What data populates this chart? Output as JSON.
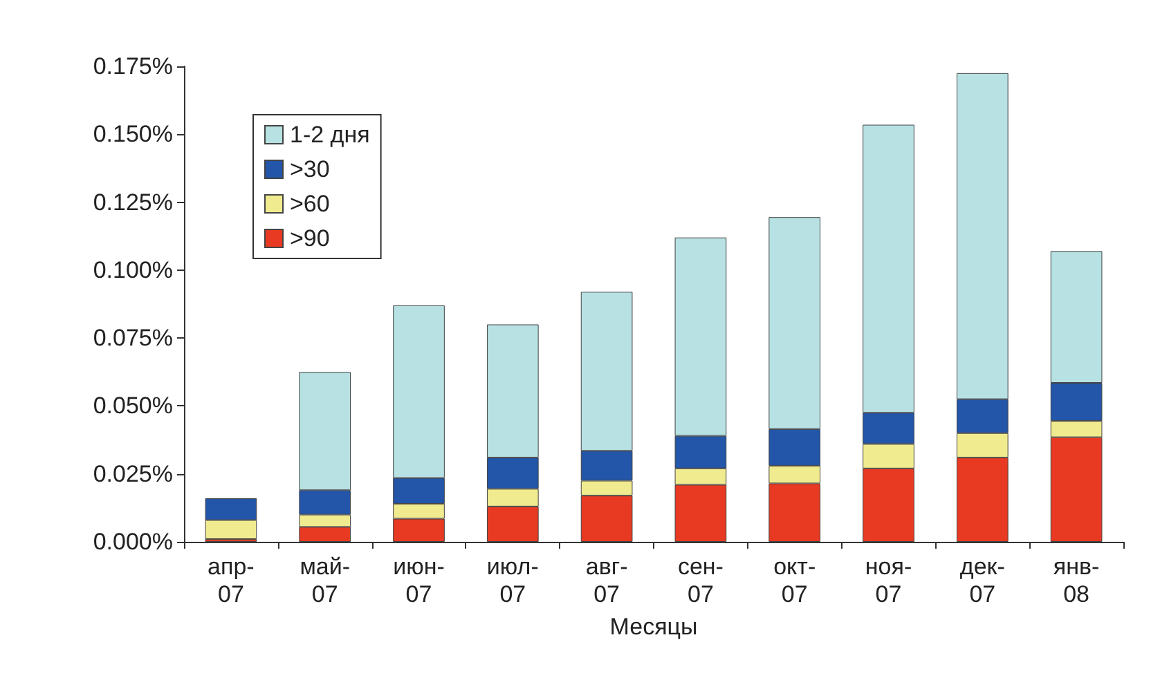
{
  "chart_data": {
    "type": "bar",
    "stacked": true,
    "xlabel": "Месяцы",
    "categories": [
      "апр-07",
      "май-07",
      "июн-07",
      "июл-07",
      "авг-07",
      "сен-07",
      "окт-07",
      "ноя-07",
      "дек-07",
      "янв-08"
    ],
    "series": [
      {
        "name": ">90",
        "color": "#e83a22",
        "values": [
          0.001,
          0.0055,
          0.0085,
          0.013,
          0.017,
          0.021,
          0.0215,
          0.027,
          0.031,
          0.0385
        ]
      },
      {
        "name": ">60",
        "color": "#f0eb8f",
        "values": [
          0.007,
          0.0045,
          0.0055,
          0.0065,
          0.0055,
          0.006,
          0.0065,
          0.009,
          0.009,
          0.006
        ]
      },
      {
        "name": ">30",
        "color": "#2356a8",
        "values": [
          0.008,
          0.009,
          0.0095,
          0.0115,
          0.011,
          0.012,
          0.0135,
          0.0115,
          0.0125,
          0.014
        ]
      },
      {
        "name": "1-2 дня",
        "color": "#b7e1e3",
        "values": [
          null,
          0.0435,
          0.0635,
          0.049,
          0.0585,
          0.073,
          0.078,
          0.106,
          0.12,
          0.0485
        ]
      }
    ],
    "ylim": [
      0,
      0.175
    ],
    "yticks": [
      {
        "value": 0,
        "label": "0.000%"
      },
      {
        "value": 0.025,
        "label": "0.025%"
      },
      {
        "value": 0.05,
        "label": "0.050%"
      },
      {
        "value": 0.075,
        "label": "0.075%"
      },
      {
        "value": 0.1,
        "label": "0.100%"
      },
      {
        "value": 0.125,
        "label": "0.125%"
      },
      {
        "value": 0.15,
        "label": "0.150%"
      },
      {
        "value": 0.175,
        "label": "0.175%"
      }
    ],
    "grid": false,
    "legend": "top left"
  }
}
